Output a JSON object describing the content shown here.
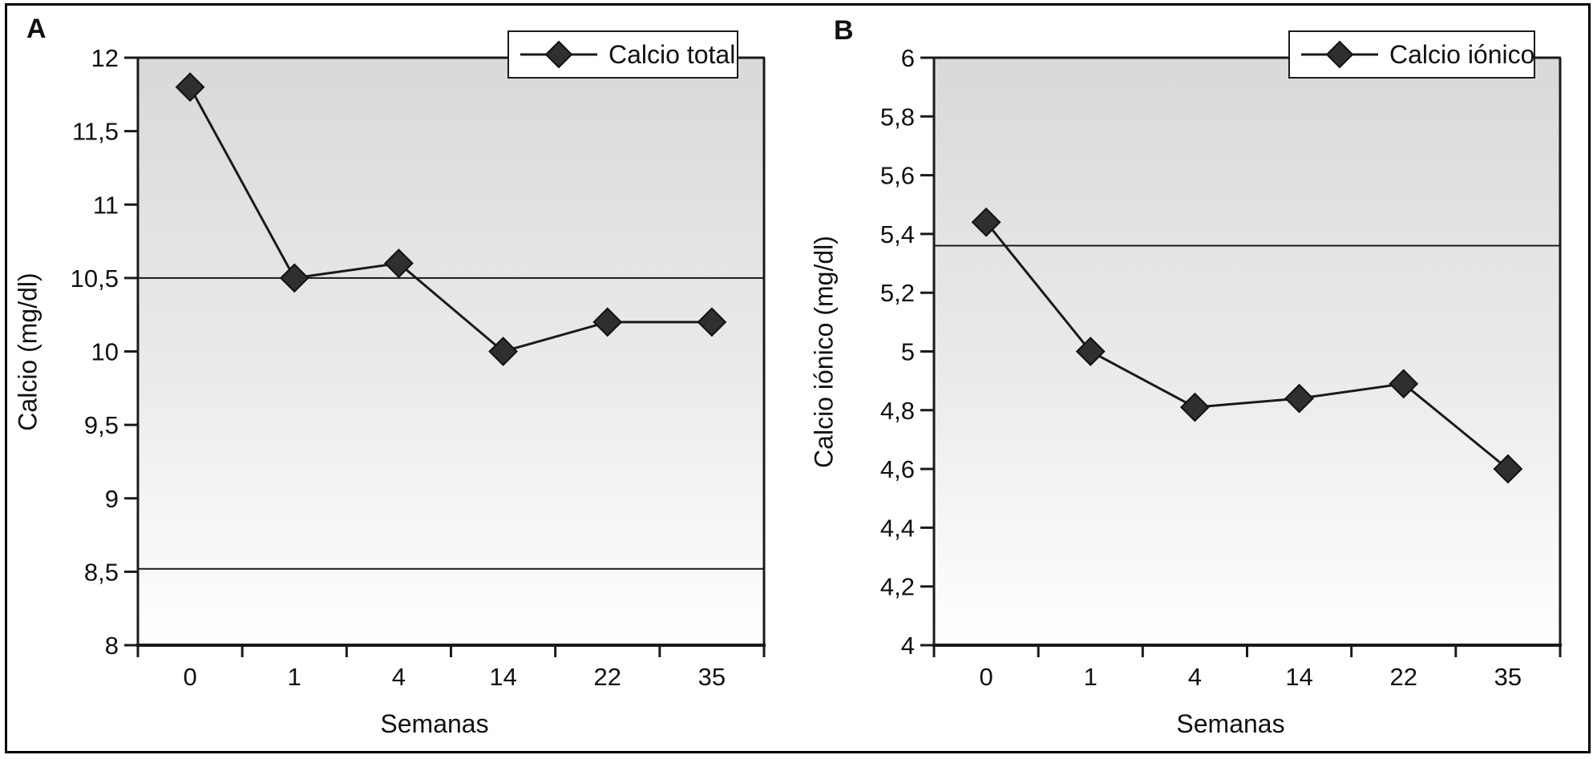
{
  "figure": {
    "panels": [
      {
        "panel_label": "A",
        "legend_label": "Calcio total",
        "y_axis_label": "Calcio (mg/dl)",
        "x_axis_label": "Semanas"
      },
      {
        "panel_label": "B",
        "legend_label": "Calcio iónico",
        "y_axis_label": "Calcio iónico (mg/dl)",
        "x_axis_label": "Semanas"
      }
    ],
    "colors": {
      "axis": "#1a1a1a",
      "series_line": "#1a1a1a",
      "marker_fill": "#2f2f2f",
      "marker_stroke": "#111111",
      "reference_line": "#1a1a1a",
      "plot_bg_top": "#d9d9d9",
      "plot_bg_mid": "#ebebeb",
      "plot_bg_bottom": "#ffffff",
      "legend_bg": "#ffffff",
      "legend_border": "#1a1a1a",
      "text": "#111111"
    }
  },
  "chart_data": [
    {
      "type": "line",
      "panel": "A",
      "title": "",
      "categories": [
        "0",
        "1",
        "4",
        "14",
        "22",
        "35"
      ],
      "series": [
        {
          "name": "Calcio total",
          "values": [
            11.8,
            10.5,
            10.6,
            10.0,
            10.2,
            10.2
          ]
        }
      ],
      "reference_lines": [
        10.5,
        8.52
      ],
      "xlabel": "Semanas",
      "ylabel": "Calcio (mg/dl)",
      "ylim": [
        8,
        12
      ],
      "ytick_step": 0.5,
      "yticks": [
        {
          "value": 12,
          "label": "12"
        },
        {
          "value": 11.5,
          "label": "11,5"
        },
        {
          "value": 11,
          "label": "11"
        },
        {
          "value": 10.5,
          "label": "10,5"
        },
        {
          "value": 10,
          "label": "10"
        },
        {
          "value": 9.5,
          "label": "9,5"
        },
        {
          "value": 9,
          "label": "9"
        },
        {
          "value": 8.5,
          "label": "8,5"
        },
        {
          "value": 8,
          "label": "8"
        }
      ],
      "legend": {
        "label": "Calcio total",
        "position": "top-right"
      },
      "grid": false,
      "marker": "diamond",
      "decimal_separator": ","
    },
    {
      "type": "line",
      "panel": "B",
      "title": "",
      "categories": [
        "0",
        "1",
        "4",
        "14",
        "22",
        "35"
      ],
      "series": [
        {
          "name": "Calcio iónico",
          "values": [
            5.44,
            5.0,
            4.81,
            4.84,
            4.89,
            4.6
          ]
        }
      ],
      "reference_lines": [
        5.36
      ],
      "xlabel": "Semanas",
      "ylabel": "Calcio iónico (mg/dl)",
      "ylim": [
        4,
        6
      ],
      "ytick_step": 0.2,
      "yticks": [
        {
          "value": 6,
          "label": "6"
        },
        {
          "value": 5.8,
          "label": "5,8"
        },
        {
          "value": 5.6,
          "label": "5,6"
        },
        {
          "value": 5.4,
          "label": "5,4"
        },
        {
          "value": 5.2,
          "label": "5,2"
        },
        {
          "value": 5,
          "label": "5"
        },
        {
          "value": 4.8,
          "label": "4,8"
        },
        {
          "value": 4.6,
          "label": "4,6"
        },
        {
          "value": 4.4,
          "label": "4,4"
        },
        {
          "value": 4.2,
          "label": "4,2"
        },
        {
          "value": 4,
          "label": "4"
        }
      ],
      "legend": {
        "label": "Calcio iónico",
        "position": "top-right"
      },
      "grid": false,
      "marker": "diamond",
      "decimal_separator": ","
    }
  ]
}
